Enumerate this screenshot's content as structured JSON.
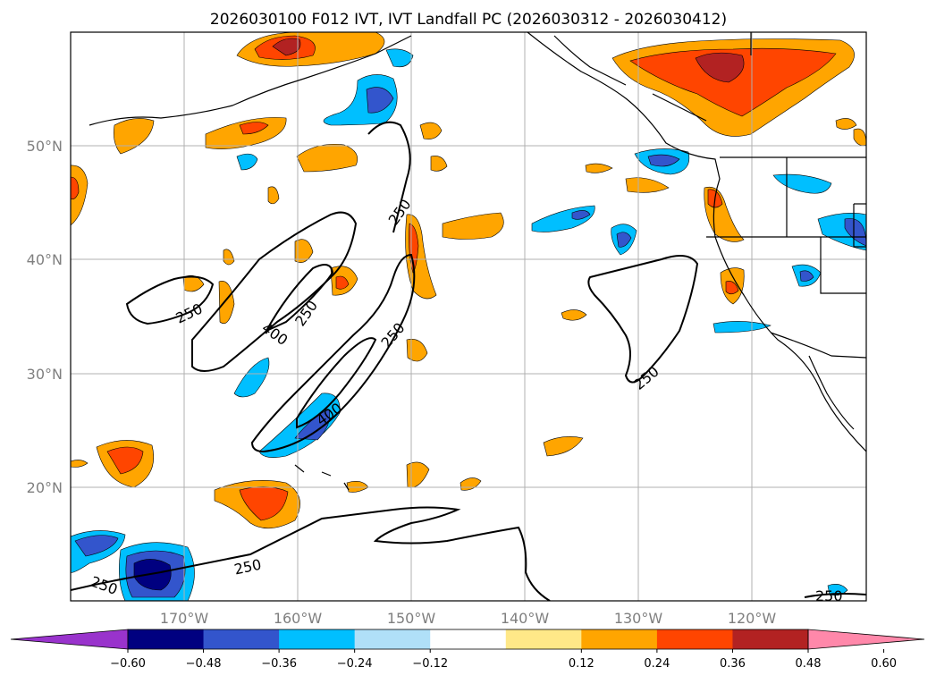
{
  "title": "2026030100 F012 IVT, IVT Landfall PC (2026030312 - 2026030412)",
  "lat_labels": [
    "50°N",
    "40°N",
    "30°N",
    "20°N"
  ],
  "lon_labels": [
    "170°W",
    "160°W",
    "150°W",
    "140°W",
    "130°W",
    "120°W"
  ],
  "colorbar": {
    "ticks": [
      "−0.60",
      "−0.48",
      "−0.36",
      "−0.24",
      "−0.12",
      "0.12",
      "0.24",
      "0.36",
      "0.48",
      "0.60"
    ],
    "colors": [
      "#9933cc",
      "#000080",
      "#3355cc",
      "#00bfff",
      "#b0e0f8",
      "#ffffff",
      "#ffe888",
      "#ffa500",
      "#ff4500",
      "#b22222",
      "#ff88aa"
    ]
  },
  "contour_labels": [
    "250",
    "250",
    "400",
    "250",
    "250",
    "400",
    "250",
    "250",
    "250",
    "250"
  ],
  "contour_levels": [
    "250",
    "400"
  ],
  "colors": {
    "coast": "#000000",
    "grid": "#b0b0b0",
    "contour": "#000000"
  }
}
